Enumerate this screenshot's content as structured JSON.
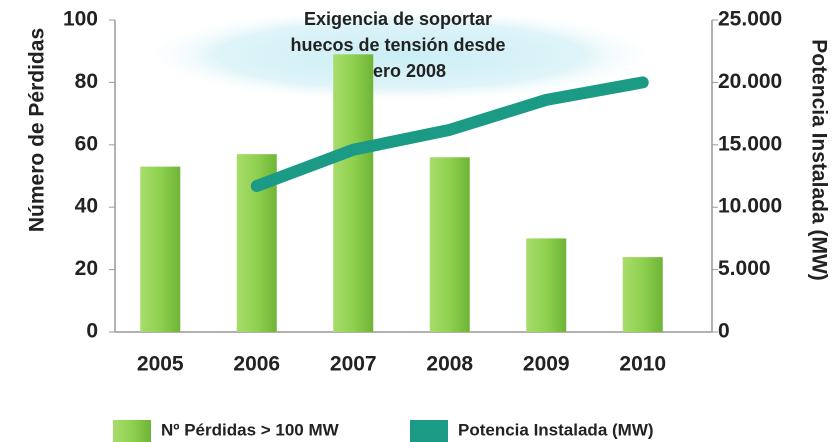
{
  "chart_data": {
    "type": "bar",
    "annotation": [
      "Exigencia de soportar",
      "huecos de tensión desde",
      "Enero 2008"
    ],
    "ylabel": "Número de Pérdidas",
    "y2label": "Potencia Instalada (MW)",
    "categories": [
      "2005",
      "2006",
      "2007",
      "2008",
      "2009",
      "2010"
    ],
    "series": [
      {
        "name": "Nº Pérdidas > 100 MW",
        "color": "#8fd14f",
        "type": "bar",
        "values": [
          53,
          57,
          89,
          56,
          30,
          24
        ]
      },
      {
        "name": "Potencia Instalada (MW)",
        "color": "#1b9a86",
        "type": "line",
        "axis": "y2",
        "values": [
          null,
          11700,
          14600,
          16200,
          18600,
          20000
        ]
      }
    ],
    "ylim": [
      0,
      100
    ],
    "yticks": [
      0,
      20,
      40,
      60,
      80,
      100
    ],
    "y2lim": [
      0,
      25000
    ],
    "y2ticks": [
      0,
      {
        "value": 5000,
        "label": "5.000"
      },
      {
        "value": 10000,
        "label": "10.000"
      },
      {
        "value": 15000,
        "label": "15.000"
      },
      {
        "value": 20000,
        "label": "20.000"
      },
      {
        "value": 25000,
        "label": "25.000"
      }
    ],
    "legend": "bottom"
  }
}
